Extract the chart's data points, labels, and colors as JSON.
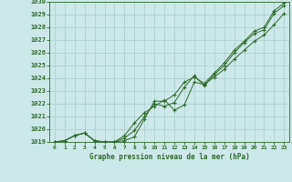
{
  "x": [
    0,
    1,
    2,
    3,
    4,
    5,
    6,
    7,
    8,
    9,
    10,
    11,
    12,
    13,
    14,
    15,
    16,
    17,
    18,
    19,
    20,
    21,
    22,
    23
  ],
  "line1": [
    1019.0,
    1019.1,
    1019.5,
    1019.7,
    1019.1,
    1019.0,
    1019.0,
    1019.1,
    1019.4,
    1020.8,
    1022.2,
    1022.2,
    1022.7,
    1023.7,
    1024.1,
    1023.6,
    1024.4,
    1025.2,
    1026.2,
    1026.9,
    1027.7,
    1028.0,
    1029.3,
    1029.9
  ],
  "line2": [
    1019.0,
    1019.1,
    1019.5,
    1019.7,
    1019.1,
    1019.0,
    1019.0,
    1019.5,
    1020.5,
    1021.3,
    1021.8,
    1022.3,
    1021.5,
    1021.9,
    1023.7,
    1023.5,
    1024.1,
    1024.7,
    1025.5,
    1026.2,
    1026.9,
    1027.4,
    1028.2,
    1029.1
  ],
  "line3": [
    1019.0,
    1019.1,
    1019.5,
    1019.7,
    1019.1,
    1019.0,
    1019.0,
    1019.3,
    1019.9,
    1021.0,
    1022.0,
    1021.8,
    1022.1,
    1023.3,
    1024.2,
    1023.4,
    1024.3,
    1025.0,
    1026.0,
    1026.8,
    1027.5,
    1027.8,
    1029.1,
    1029.7
  ],
  "line_color": "#2d6a2d",
  "bg_color": "#cce8e8",
  "grid_color": "#aacccc",
  "title": "Graphe pression niveau de la mer (hPa)",
  "ylim": [
    1019,
    1030
  ],
  "yticks": [
    1019,
    1020,
    1021,
    1022,
    1023,
    1024,
    1025,
    1026,
    1027,
    1028,
    1029,
    1030
  ],
  "xlim": [
    -0.5,
    23.5
  ],
  "xticks": [
    0,
    1,
    2,
    3,
    4,
    5,
    6,
    7,
    8,
    9,
    10,
    11,
    12,
    13,
    14,
    15,
    16,
    17,
    18,
    19,
    20,
    21,
    22,
    23
  ]
}
